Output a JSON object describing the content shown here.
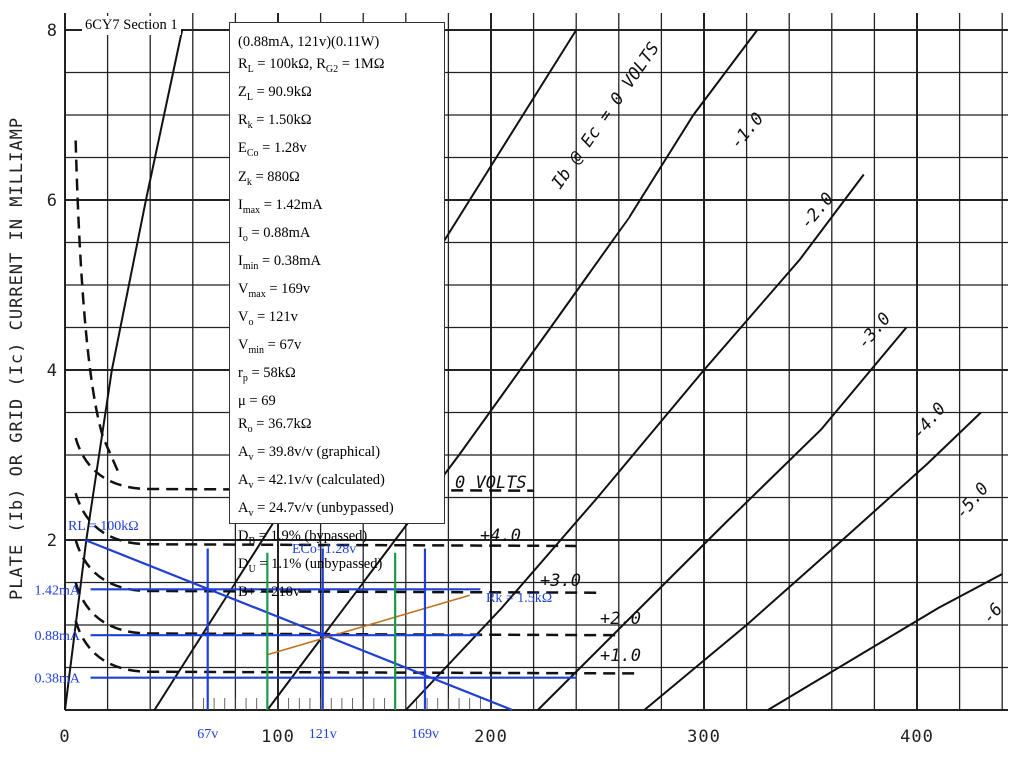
{
  "chart_data": {
    "type": "line",
    "title": "6CY7 Section 1",
    "xlabel": "",
    "ylabel": "PLATE (Ib) OR GRID (Ic) CURRENT IN MILLIAMP",
    "xlim": [
      0,
      445
    ],
    "ylim": [
      0,
      8.2
    ],
    "x_ticks": [
      "0",
      "100",
      "200",
      "300",
      "400"
    ],
    "y_ticks": [
      "2",
      "4",
      "6",
      "8"
    ],
    "grid": true,
    "curve_labels": [
      "Ib @ Ec = 0 VOLTS",
      "-1.0",
      "-2.0",
      "-3.0",
      "-4.0",
      "-5.0",
      "-6"
    ],
    "grid_curve_labels": [
      "0 VOLTS",
      "+4.0",
      "+3.0",
      "+2.0",
      "+1.0"
    ],
    "series": [
      {
        "name": "0",
        "values": [
          [
            0,
            0
          ],
          [
            10,
            2
          ],
          [
            22,
            4
          ],
          [
            38,
            6
          ],
          [
            55,
            8
          ]
        ]
      },
      {
        "name": "-1.0",
        "values": [
          [
            42,
            0
          ],
          [
            80,
            1.5
          ],
          [
            118,
            3
          ],
          [
            165,
            5
          ],
          [
            215,
            7
          ],
          [
            240,
            8
          ]
        ]
      },
      {
        "name": "-2.0",
        "values": [
          [
            95,
            0
          ],
          [
            140,
            1.5
          ],
          [
            185,
            3
          ],
          [
            228,
            4.5
          ],
          [
            265,
            5.8
          ],
          [
            295,
            7
          ],
          [
            325,
            8
          ]
        ]
      },
      {
        "name": "-3.0",
        "values": [
          [
            160,
            0
          ],
          [
            205,
            1.2
          ],
          [
            250,
            2.5
          ],
          [
            300,
            4
          ],
          [
            345,
            5.3
          ],
          [
            375,
            6.3
          ]
        ]
      },
      {
        "name": "-4.0",
        "values": [
          [
            222,
            0
          ],
          [
            270,
            1.2
          ],
          [
            310,
            2.2
          ],
          [
            355,
            3.3
          ],
          [
            395,
            4.5
          ]
        ]
      },
      {
        "name": "-5.0",
        "values": [
          [
            272,
            0
          ],
          [
            320,
            1
          ],
          [
            365,
            2
          ],
          [
            405,
            2.9
          ],
          [
            430,
            3.5
          ]
        ]
      },
      {
        "name": "-6",
        "values": [
          [
            330,
            0
          ],
          [
            370,
            0.6
          ],
          [
            410,
            1.2
          ],
          [
            440,
            1.6
          ]
        ]
      }
    ],
    "annotations": {
      "load_line_label": "RL = 100kΩ",
      "bias_label": "ECo=1.28v",
      "rk_label": "Rk = 1.5kΩ",
      "current_labels": [
        "1.42mA",
        "0.88mA",
        "0.38mA"
      ],
      "voltage_labels": [
        "67v",
        "121v",
        "169v"
      ],
      "load_line": [
        [
          0,
          2.0
        ],
        [
          210,
          0
        ]
      ],
      "rk_line": [
        [
          95,
          0.65
        ],
        [
          190,
          1.35
        ]
      ],
      "i_levels": [
        1.42,
        0.88,
        0.38
      ],
      "v_levels": [
        67,
        121,
        169
      ],
      "green_v": [
        95,
        155
      ]
    },
    "colors": {
      "curves": "#111111",
      "annotation": "#1f3fd6",
      "green": "#1a9a4a",
      "rk": "#c07020"
    }
  },
  "info": {
    "lines": [
      {
        "t": "(0.88mA, 121v)(0.11W)"
      },
      {
        "t": "R",
        "sub": "L",
        "t2": " = 100kΩ, R",
        "sub2": "G2",
        "t3": " = 1MΩ"
      },
      {
        "t": "Z",
        "sub": "L",
        "t2": " = 90.9kΩ"
      },
      {
        "t": "R",
        "sub": "k",
        "t2": " = 1.50kΩ"
      },
      {
        "t": "E",
        "sub": "Co",
        "t2": " = 1.28v"
      },
      {
        "t": "Z",
        "sub": "k",
        "t2": " = 880Ω"
      },
      {
        "t": "I",
        "sub": "max",
        "t2": " = 1.42mA"
      },
      {
        "t": "I",
        "sub": "o",
        "t2": " = 0.88mA"
      },
      {
        "t": "I",
        "sub": "min",
        "t2": " = 0.38mA"
      },
      {
        "t": "V",
        "sub": "max",
        "t2": " = 169v"
      },
      {
        "t": "V",
        "sub": "o",
        "t2": " = 121v"
      },
      {
        "t": "V",
        "sub": "min",
        "t2": " = 67v"
      },
      {
        "t": "r",
        "sub": "p",
        "t2": " = 58kΩ"
      },
      {
        "t": "μ = 69"
      },
      {
        "t": "R",
        "sub": "o",
        "t2": " = 36.7kΩ"
      },
      {
        "t": "A",
        "sub": "v",
        "t2": " = 39.8v/v (graphical)"
      },
      {
        "t": "A",
        "sub": "v",
        "t2": " = 42.1v/v (calculated)"
      },
      {
        "t": "A",
        "sub": "v",
        "t2": " = 24.7v/v (unbypassed)"
      },
      {
        "t": "D",
        "sub": "B",
        "t2": " = 1.9% (bypassed)"
      },
      {
        "t": "D",
        "sub": "U",
        "t2": " = 1.1% (unbypassed)"
      },
      {
        "t": "B+ = 210v"
      }
    ]
  }
}
